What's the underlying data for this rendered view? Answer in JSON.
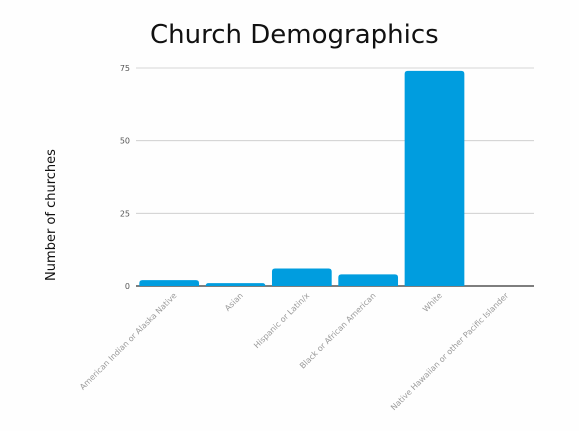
{
  "chart_data": {
    "type": "bar",
    "title": "Church Demographics",
    "xlabel": "",
    "ylabel": "Number of churches",
    "categories": [
      "American Indian or Alaska Native",
      "Asian",
      "Hispanic or Latin/x",
      "Black or African American",
      "White",
      "Native Hawaiian or other Pacific Islander"
    ],
    "values": [
      2,
      1,
      6,
      4,
      74,
      0
    ],
    "ylim": [
      0,
      75
    ],
    "yticks": [
      0,
      25,
      50,
      75
    ],
    "grid": "horizontal",
    "legend": "none",
    "bar_color": "#009ddf",
    "grid_color": "#c8c8c8",
    "axis_color": "#333333"
  }
}
